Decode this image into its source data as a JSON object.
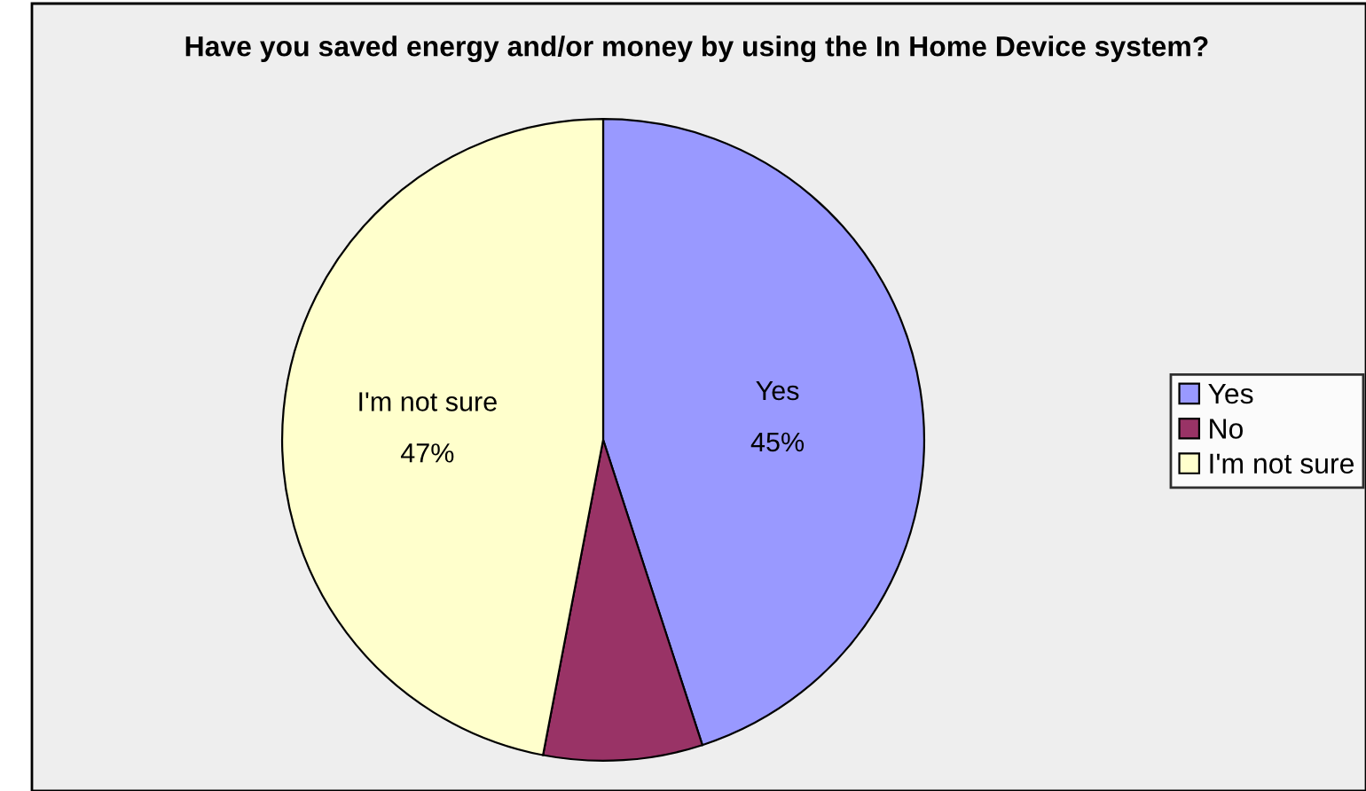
{
  "chart_data": {
    "type": "pie",
    "title": "Have you saved energy and/or money by using the In Home Device system?",
    "categories": [
      "Yes",
      "No",
      "I'm not sure"
    ],
    "values": [
      45,
      8,
      47
    ],
    "colors": [
      "#9999ff",
      "#993366",
      "#ffffcc"
    ],
    "value_labels": [
      "45%",
      null,
      "47%"
    ],
    "legend": "right"
  }
}
